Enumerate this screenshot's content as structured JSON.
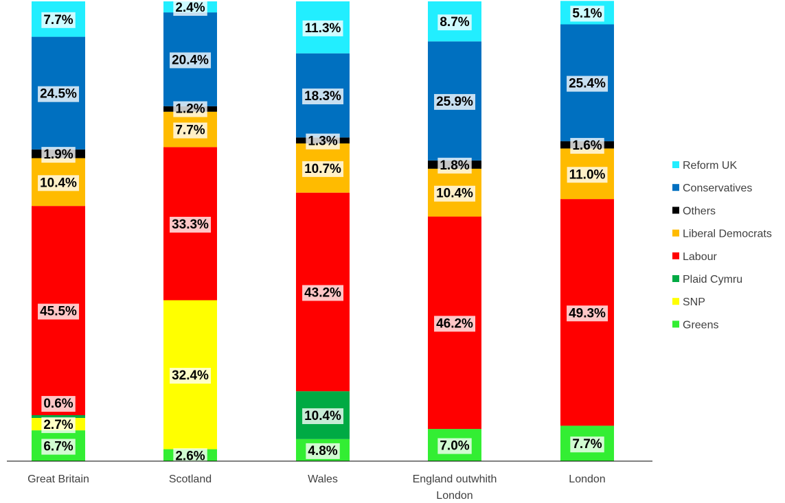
{
  "chart_data": {
    "type": "bar",
    "stacked": true,
    "normalized_percent": true,
    "categories": [
      "Great Britain",
      "Scotland",
      "Wales",
      "England outwhith London",
      "London"
    ],
    "series": [
      {
        "name": "Greens",
        "color": "#33ee33",
        "values": [
          6.7,
          2.6,
          4.8,
          7.0,
          7.7
        ]
      },
      {
        "name": "SNP",
        "color": "#ffff00",
        "values": [
          2.7,
          32.4,
          0,
          0,
          0
        ]
      },
      {
        "name": "Plaid Cymru",
        "color": "#00aa44",
        "values": [
          0.6,
          0,
          10.4,
          0,
          0
        ]
      },
      {
        "name": "Labour",
        "color": "#ff0000",
        "values": [
          45.5,
          33.3,
          43.2,
          46.2,
          49.3
        ]
      },
      {
        "name": "Liberal Democrats",
        "color": "#ffbb00",
        "values": [
          10.4,
          7.7,
          10.7,
          10.4,
          11.0
        ]
      },
      {
        "name": "Others",
        "color": "#000000",
        "values": [
          1.9,
          1.2,
          1.3,
          1.8,
          1.6
        ]
      },
      {
        "name": "Conservatives",
        "color": "#0070c0",
        "values": [
          24.5,
          20.4,
          18.3,
          25.9,
          25.4
        ]
      },
      {
        "name": "Reform UK",
        "color": "#22eeff",
        "values": [
          7.7,
          2.4,
          11.3,
          8.7,
          5.1
        ]
      }
    ],
    "data_labels": [
      [
        "6.7%",
        "2.7%",
        "0.6%",
        "45.5%",
        "10.4%",
        "1.9%",
        "24.5%",
        "7.7%"
      ],
      [
        "2.6%",
        "32.4%",
        "",
        "33.3%",
        "7.7%",
        "1.2%",
        "20.4%",
        "2.4%"
      ],
      [
        "4.8%",
        "",
        "10.4%",
        "43.2%",
        "10.7%",
        "1.3%",
        "18.3%",
        "11.3%"
      ],
      [
        "7.0%",
        "",
        "",
        "46.2%",
        "10.4%",
        "1.8%",
        "25.9%",
        "8.7%"
      ],
      [
        "7.7%",
        "",
        "",
        "49.3%",
        "11.0%",
        "1.6%",
        "25.4%",
        "5.1%"
      ]
    ],
    "legend_order": [
      "Reform UK",
      "Conservatives",
      "Others",
      "Liberal Democrats",
      "Labour",
      "Plaid Cymru",
      "SNP",
      "Greens"
    ],
    "legend_position": "right",
    "ylim": [
      0,
      100
    ],
    "grid": false,
    "title": "",
    "xlabel": "",
    "ylabel": ""
  }
}
